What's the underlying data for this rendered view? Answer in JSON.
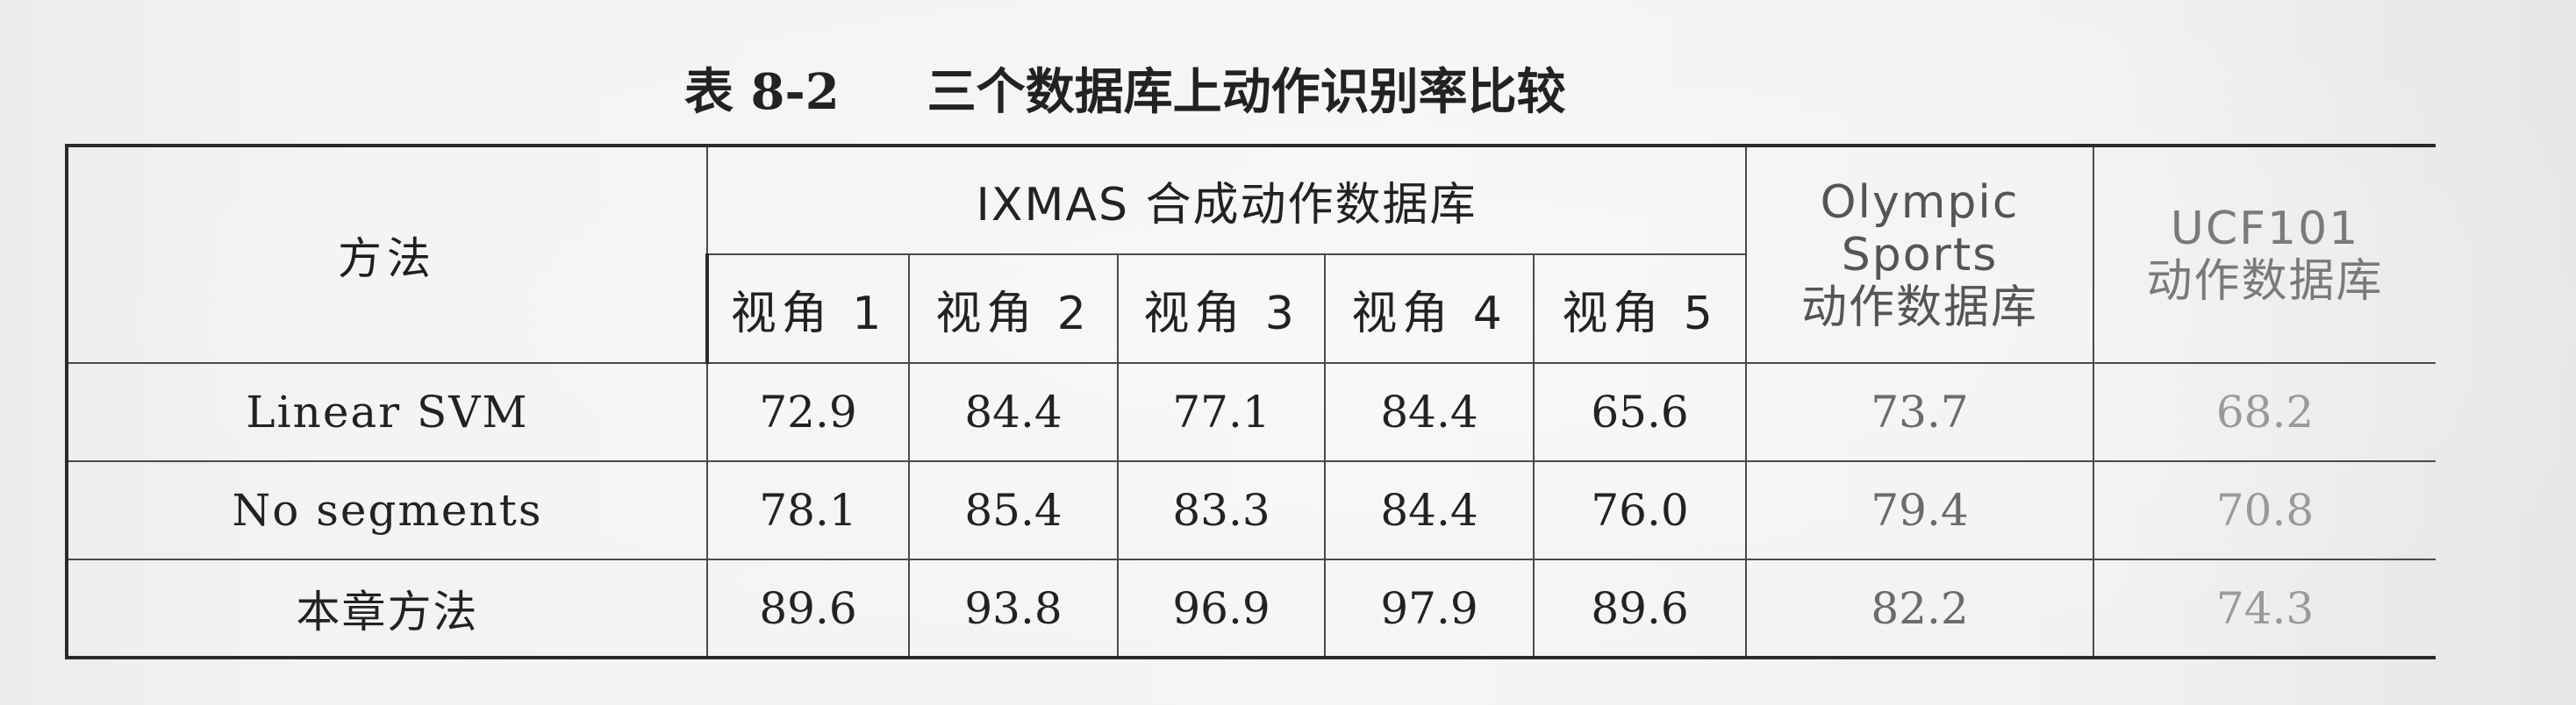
{
  "caption": {
    "number": "表 8-2",
    "title": "三个数据库上动作识别率比较"
  },
  "table": {
    "method_header": "方法",
    "ixmas_header": "IXMAS 合成动作数据库",
    "view_headers": [
      "视角 1",
      "视角 2",
      "视角 3",
      "视角 4",
      "视角 5"
    ],
    "olympic_header": [
      "Olympic",
      "Sports",
      "动作数据库"
    ],
    "ucf_header": [
      "UCF101",
      "动作数据库"
    ],
    "rows": [
      {
        "method": "Linear SVM",
        "values": [
          "72.9",
          "84.4",
          "77.1",
          "84.4",
          "65.6",
          "73.7",
          "68.2"
        ]
      },
      {
        "method": "No segments",
        "values": [
          "78.1",
          "85.4",
          "83.3",
          "84.4",
          "76.0",
          "79.4",
          "70.8"
        ]
      },
      {
        "method": "本章方法",
        "values": [
          "89.6",
          "93.8",
          "96.9",
          "97.9",
          "89.6",
          "82.2",
          "74.3"
        ]
      }
    ]
  }
}
